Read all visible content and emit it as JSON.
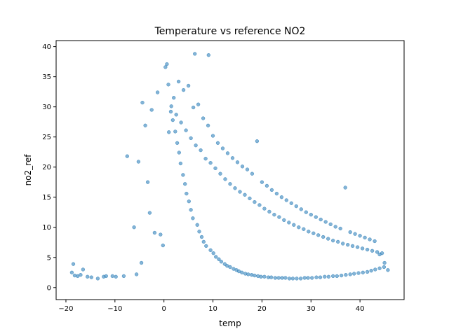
{
  "chart_data": {
    "type": "scatter",
    "title": "Temperature vs reference NO2",
    "xlabel": "temp",
    "ylabel": "no2_ref",
    "xlim": [
      -22,
      49
    ],
    "ylim": [
      -2,
      41
    ],
    "xticks": [
      -20,
      -10,
      0,
      10,
      20,
      30,
      40
    ],
    "yticks": [
      0,
      5,
      10,
      15,
      20,
      25,
      30,
      35,
      40
    ],
    "grid": false,
    "legend": "none",
    "point_color": "#1f77b4",
    "point_alpha": 0.55,
    "series": [
      {
        "x": [
          -18.8,
          -18.5,
          -18.2,
          -17.6,
          -17.0,
          -16.5,
          -15.6,
          -14.8,
          -13.5,
          -12.3,
          -11.8,
          -10.5,
          -9.8,
          -8.2,
          -7.5,
          -6.1,
          -5.6,
          -5.2,
          -4.6,
          -4.4,
          -3.8,
          -3.3,
          -2.9,
          -2.5,
          -1.9,
          -1.3,
          -0.7,
          -0.2,
          0.3,
          0.6,
          0.9,
          1.4,
          1.8,
          2.3,
          2.7,
          3.1,
          3.4,
          3.9,
          4.3,
          4.6,
          5.1,
          5.5,
          5.9,
          6.3,
          6.8,
          7.2,
          7.7,
          8.1,
          8.6,
          9.1,
          9.5,
          10.1,
          10.6,
          11.2,
          11.7,
          12.4,
          12.9,
          13.5,
          14.2,
          14.8,
          15.3,
          15.9,
          16.6,
          17.2,
          17.9,
          18.5,
          19.2,
          19.8,
          20.5,
          21.3,
          21.9,
          22.7,
          23.4,
          24.1,
          24.8,
          25.6,
          26.3,
          27.1,
          27.9,
          28.7,
          29.4,
          30.2,
          31.1,
          31.9,
          32.8,
          33.6,
          34.5,
          35.3,
          36.2,
          37.1,
          38.0,
          38.8,
          39.7,
          40.6,
          41.5,
          42.3,
          43.1,
          44.0,
          44.9,
          45.7
        ],
        "y": [
          2.5,
          3.9,
          2.0,
          1.9,
          2.1,
          3.0,
          1.8,
          1.7,
          1.5,
          1.8,
          1.9,
          1.9,
          1.8,
          1.9,
          21.8,
          10.0,
          2.2,
          20.9,
          4.1,
          30.7,
          26.9,
          17.5,
          12.4,
          29.5,
          9.1,
          32.4,
          8.8,
          7.0,
          36.6,
          37.1,
          33.7,
          29.2,
          27.8,
          25.9,
          24.0,
          22.4,
          20.6,
          18.7,
          17.2,
          15.6,
          14.3,
          12.9,
          11.5,
          38.8,
          10.4,
          9.3,
          8.4,
          7.6,
          6.9,
          38.6,
          6.2,
          5.7,
          5.1,
          4.7,
          4.3,
          3.9,
          3.6,
          3.4,
          3.1,
          2.9,
          2.7,
          2.5,
          2.3,
          2.2,
          2.1,
          2.0,
          1.9,
          1.8,
          1.8,
          1.7,
          1.7,
          1.6,
          1.6,
          1.6,
          1.6,
          1.5,
          1.5,
          1.5,
          1.5,
          1.6,
          1.6,
          1.6,
          1.7,
          1.7,
          1.8,
          1.8,
          1.9,
          1.9,
          2.0,
          2.1,
          2.2,
          2.3,
          2.4,
          2.5,
          2.6,
          2.8,
          3.0,
          3.2,
          3.4,
          2.9
        ]
      },
      {
        "x": [
          1.0,
          1.5,
          2.0,
          2.5,
          3.0,
          3.5,
          4.0,
          4.5,
          5.0,
          5.5,
          6.0,
          6.5,
          7.0,
          7.5,
          8.0,
          8.5,
          9.0,
          9.5,
          10.0,
          10.5,
          11.0,
          11.5,
          12.0,
          12.5,
          13.0,
          13.5,
          14.0,
          14.5,
          15.0,
          15.5,
          16.0,
          16.5,
          17.0,
          17.5,
          18.0,
          18.5,
          19.0,
          19.5,
          20.0,
          20.5,
          21.0,
          21.5,
          22.0,
          22.5,
          23.0,
          23.5,
          24.0,
          24.5,
          25.0,
          25.5,
          26.0,
          26.5,
          27.0,
          27.5,
          28.0,
          28.5,
          29.0,
          29.5,
          30.0,
          30.5,
          31.0,
          31.5,
          32.0,
          32.5,
          33.0,
          33.5,
          34.0,
          34.5,
          35.0,
          35.5,
          36.0,
          36.5,
          37.0,
          37.5,
          38.0,
          38.5,
          39.0,
          39.5,
          40.0,
          40.5,
          41.0,
          41.5,
          42.0,
          42.5,
          43.0,
          43.5,
          44.0,
          44.5,
          45.0
        ],
        "y": [
          25.8,
          30.1,
          31.5,
          28.7,
          34.2,
          27.4,
          32.8,
          26.1,
          33.5,
          24.8,
          29.9,
          23.6,
          30.4,
          22.8,
          28.1,
          21.4,
          26.9,
          20.7,
          25.2,
          19.8,
          24.0,
          18.9,
          23.1,
          18.0,
          22.3,
          17.2,
          21.5,
          16.5,
          20.8,
          15.9,
          20.1,
          15.4,
          19.6,
          14.8,
          18.9,
          14.2,
          24.3,
          13.7,
          17.5,
          13.1,
          16.9,
          12.6,
          16.2,
          12.1,
          15.6,
          11.7,
          15.0,
          11.2,
          14.5,
          10.8,
          14.0,
          10.4,
          13.5,
          10.0,
          13.0,
          9.7,
          12.5,
          9.3,
          12.1,
          9.0,
          11.7,
          8.7,
          11.3,
          8.4,
          10.9,
          8.1,
          10.5,
          7.8,
          10.1,
          7.6,
          9.8,
          7.3,
          16.6,
          7.1,
          9.2,
          6.9,
          8.9,
          6.7,
          8.6,
          6.5,
          8.3,
          6.3,
          8.0,
          6.1,
          7.7,
          5.9,
          5.5,
          5.7,
          4.1
        ]
      }
    ]
  }
}
